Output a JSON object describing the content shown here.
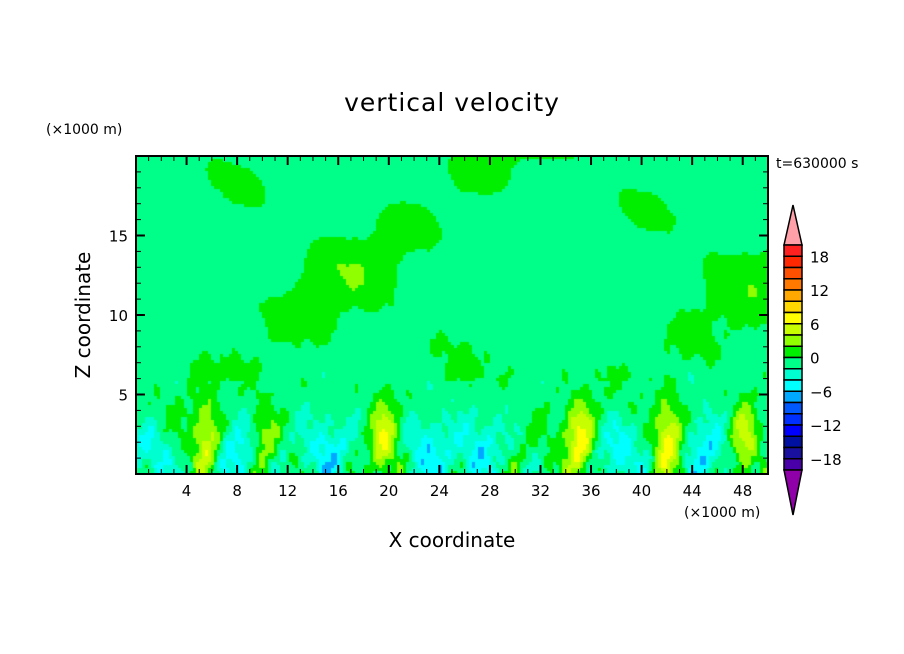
{
  "chart_data": {
    "type": "heatmap",
    "title": "vertical velocity",
    "xlabel": "X coordinate",
    "ylabel": "Z coordinate",
    "x_unit": "(×1000 m)",
    "y_unit": "(×1000 m)",
    "time_label": "t=630000 s",
    "xlim": [
      0,
      50
    ],
    "ylim": [
      0,
      20
    ],
    "xticks": [
      4,
      8,
      12,
      16,
      20,
      24,
      28,
      32,
      36,
      40,
      44,
      48
    ],
    "yticks": [
      5,
      10,
      15
    ],
    "colorbar": {
      "levels": [
        -20,
        -18,
        -16,
        -14,
        -12,
        -10,
        -8,
        -6,
        -4,
        -2,
        0,
        2,
        4,
        6,
        8,
        10,
        12,
        14,
        16,
        18,
        20
      ],
      "tick_labels": [
        "18",
        "12",
        "6",
        "0",
        "−6",
        "−12",
        "−18"
      ],
      "tick_values": [
        18,
        12,
        6,
        0,
        -6,
        -12,
        -18
      ],
      "colors_low_to_high": [
        "#4a00a8",
        "#1a10a0",
        "#0010a0",
        "#0000ff",
        "#0030ff",
        "#0058ff",
        "#00a8ff",
        "#00ffff",
        "#00ffd0",
        "#00ff88",
        "#00ee00",
        "#90ff00",
        "#c8ff00",
        "#ffff00",
        "#ffd800",
        "#ffa800",
        "#ff7800",
        "#ff5000",
        "#ff2800",
        "#ff2020"
      ],
      "over_color": "#ffa0a8",
      "under_color": "#9000a8"
    },
    "updraft_cores_x": [
      5.5,
      10,
      19.5,
      35,
      42,
      48
    ],
    "updraft_peak_values": [
      6,
      4.5,
      7,
      7,
      8,
      6
    ],
    "downdraft_regions_x": [
      1,
      8,
      15,
      23,
      27,
      38,
      45
    ],
    "background_value": -1
  }
}
